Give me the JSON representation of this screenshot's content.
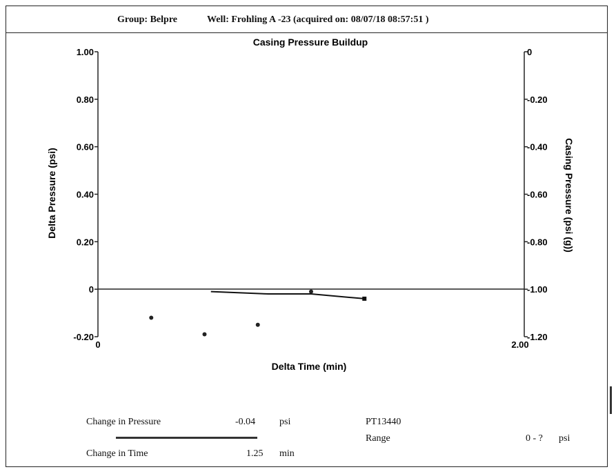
{
  "header": {
    "group": "Group: Belpre",
    "well": "Well: Frohling A  -23 (acquired on: 08/07/18 08:57:51 )"
  },
  "chart_data": {
    "type": "line",
    "title": "Casing Pressure Buildup",
    "xlabel": "Delta Time (min)",
    "ylabel": "Delta Pressure (psi)",
    "y2label": "Casing Pressure (psi (g))",
    "xlim": [
      0,
      2.0
    ],
    "ylim": [
      -0.2,
      1.0
    ],
    "y2lim": [
      -1.2,
      0
    ],
    "x_ticks": [
      "0",
      "2.00"
    ],
    "y_ticks": [
      "1.00",
      "0.80",
      "0.60",
      "0.40",
      "0.20",
      "0",
      "-0.20"
    ],
    "y_tick_values": [
      1.0,
      0.8,
      0.6,
      0.4,
      0.2,
      0,
      -0.2
    ],
    "y2_ticks": [
      "0",
      "-0.20",
      "-0.40",
      "-0.60",
      "-0.80",
      "-1.00",
      "-1.20"
    ],
    "y2_tick_values": [
      0,
      -0.2,
      -0.4,
      -0.6,
      -0.8,
      -1.0,
      -1.2
    ],
    "grid": false,
    "series": [
      {
        "points": [
          [
            0.53,
            -0.01
          ],
          [
            0.8,
            -0.02
          ],
          [
            1.0,
            -0.02
          ],
          [
            1.25,
            -0.04
          ]
        ]
      }
    ],
    "scatter_points": [
      [
        0.25,
        -0.12
      ],
      [
        0.5,
        -0.19
      ],
      [
        0.75,
        -0.15
      ],
      [
        1.0,
        -0.01
      ]
    ],
    "zero_line": 0
  },
  "footer": {
    "change_pressure_label": "Change in Pressure",
    "change_pressure_value": "-0.04",
    "change_pressure_unit": "psi",
    "change_time_label": "Change in Time",
    "change_time_value": "1.25",
    "change_time_unit": "min",
    "sensor_id": "PT13440",
    "range_label": "Range",
    "range_value": "0 - ?",
    "range_unit": "psi"
  }
}
